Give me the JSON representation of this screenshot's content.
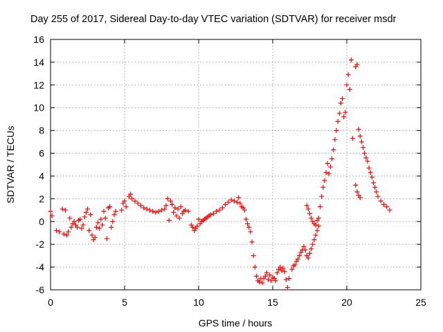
{
  "chart_data": {
    "type": "scatter",
    "title": "Day 255 of 2017, Sidereal Day-to-day VTEC variation (SDTVAR) for receiver msdr",
    "xlabel": "GPS time / hours",
    "ylabel": "SDTVAR / TECUs",
    "xlim": [
      0,
      25
    ],
    "ylim": [
      -6,
      16
    ],
    "xticks": [
      "0",
      "5",
      "10",
      "15",
      "20",
      "25"
    ],
    "yticks": [
      "-6",
      "-4",
      "-2",
      "0",
      "2",
      "4",
      "6",
      "8",
      "10",
      "12",
      "14",
      "16"
    ],
    "grid": true,
    "marker": "+",
    "color": "#ff0000",
    "series": [
      {
        "name": "msdr",
        "points": [
          [
            0.0,
            0.9
          ],
          [
            0.1,
            0.5
          ],
          [
            0.4,
            -0.8
          ],
          [
            0.6,
            -0.9
          ],
          [
            0.8,
            1.1
          ],
          [
            0.9,
            -1.1
          ],
          [
            1.0,
            1.0
          ],
          [
            1.1,
            -1.2
          ],
          [
            1.2,
            -0.9
          ],
          [
            1.3,
            0.3
          ],
          [
            1.4,
            -0.5
          ],
          [
            1.5,
            -0.2
          ],
          [
            1.6,
            0.0
          ],
          [
            1.7,
            -0.3
          ],
          [
            1.8,
            -0.5
          ],
          [
            1.9,
            0.1
          ],
          [
            2.0,
            0.2
          ],
          [
            2.1,
            -0.6
          ],
          [
            2.2,
            -0.3
          ],
          [
            2.3,
            0.4
          ],
          [
            2.4,
            0.8
          ],
          [
            2.5,
            1.1
          ],
          [
            2.6,
            -0.8
          ],
          [
            2.7,
            0.6
          ],
          [
            2.8,
            -1.2
          ],
          [
            2.9,
            -1.6
          ],
          [
            3.0,
            -1.4
          ],
          [
            3.1,
            -0.5
          ],
          [
            3.2,
            -0.1
          ],
          [
            3.3,
            -0.6
          ],
          [
            3.4,
            0.2
          ],
          [
            3.5,
            -0.3
          ],
          [
            3.6,
            0.9
          ],
          [
            3.7,
            0.3
          ],
          [
            3.8,
            -1.5
          ],
          [
            3.9,
            1.2
          ],
          [
            4.0,
            1.3
          ],
          [
            4.1,
            -0.5
          ],
          [
            4.2,
            0.0
          ],
          [
            4.3,
            0.6
          ],
          [
            4.4,
            0.9
          ],
          [
            4.8,
            1.0
          ],
          [
            4.9,
            1.6
          ],
          [
            5.0,
            1.8
          ],
          [
            5.1,
            1.3
          ],
          [
            5.3,
            2.2
          ],
          [
            5.4,
            2.4
          ],
          [
            5.5,
            2.0
          ],
          [
            5.7,
            1.8
          ],
          [
            5.9,
            1.6
          ],
          [
            6.1,
            1.4
          ],
          [
            6.3,
            1.2
          ],
          [
            6.5,
            1.1
          ],
          [
            6.7,
            1.0
          ],
          [
            6.9,
            0.9
          ],
          [
            7.1,
            0.8
          ],
          [
            7.3,
            0.9
          ],
          [
            7.5,
            1.0
          ],
          [
            7.7,
            1.1
          ],
          [
            7.8,
            1.4
          ],
          [
            7.9,
            2.0
          ],
          [
            8.0,
            0.1
          ],
          [
            8.1,
            1.8
          ],
          [
            8.2,
            1.5
          ],
          [
            8.3,
            0.8
          ],
          [
            8.4,
            1.2
          ],
          [
            8.5,
            0.5
          ],
          [
            8.6,
            1.1
          ],
          [
            8.7,
            0.3
          ],
          [
            8.8,
            1.3
          ],
          [
            8.9,
            0.7
          ],
          [
            9.0,
            0.9
          ],
          [
            9.1,
            1.0
          ],
          [
            9.3,
            0.9
          ],
          [
            9.5,
            -0.3
          ],
          [
            9.6,
            -0.5
          ],
          [
            9.7,
            -0.8
          ],
          [
            9.8,
            -0.6
          ],
          [
            9.9,
            -0.4
          ],
          [
            10.0,
            0.2
          ],
          [
            10.1,
            -0.2
          ],
          [
            10.2,
            0.0
          ],
          [
            10.3,
            0.1
          ],
          [
            10.4,
            0.2
          ],
          [
            10.5,
            0.3
          ],
          [
            10.6,
            0.4
          ],
          [
            10.7,
            0.5
          ],
          [
            10.8,
            0.6
          ],
          [
            11.0,
            0.7
          ],
          [
            11.2,
            0.9
          ],
          [
            11.4,
            1.0
          ],
          [
            11.6,
            1.2
          ],
          [
            11.8,
            1.5
          ],
          [
            12.0,
            1.7
          ],
          [
            12.2,
            1.9
          ],
          [
            12.4,
            1.8
          ],
          [
            12.6,
            1.7
          ],
          [
            12.7,
            2.1
          ],
          [
            12.8,
            1.6
          ],
          [
            12.9,
            1.3
          ],
          [
            13.0,
            1.2
          ],
          [
            13.1,
            1.0
          ],
          [
            13.2,
            0.2
          ],
          [
            13.3,
            -0.2
          ],
          [
            13.4,
            -0.5
          ],
          [
            13.5,
            -0.9
          ],
          [
            13.6,
            -1.8
          ],
          [
            13.7,
            -3.0
          ],
          [
            13.8,
            -4.0
          ],
          [
            13.9,
            -4.8
          ],
          [
            14.0,
            -5.2
          ],
          [
            14.1,
            -5.3
          ],
          [
            14.2,
            -5.0
          ],
          [
            14.3,
            -5.4
          ],
          [
            14.4,
            -5.0
          ],
          [
            14.5,
            -4.8
          ],
          [
            14.6,
            -4.5
          ],
          [
            14.7,
            -5.1
          ],
          [
            14.8,
            -4.7
          ],
          [
            14.9,
            -5.2
          ],
          [
            15.0,
            -4.9
          ],
          [
            15.1,
            -5.0
          ],
          [
            15.2,
            -5.2
          ],
          [
            15.3,
            -4.5
          ],
          [
            15.4,
            -4.2
          ],
          [
            15.5,
            -4.0
          ],
          [
            15.6,
            -4.3
          ],
          [
            15.7,
            -4.1
          ],
          [
            15.8,
            -4.4
          ],
          [
            15.9,
            -5.1
          ],
          [
            16.0,
            -5.8
          ],
          [
            16.1,
            -5.0
          ],
          [
            16.3,
            -4.2
          ],
          [
            16.4,
            -3.9
          ],
          [
            16.5,
            -3.8
          ],
          [
            16.6,
            -3.5
          ],
          [
            16.7,
            -3.3
          ],
          [
            16.8,
            -3.0
          ],
          [
            16.9,
            -2.7
          ],
          [
            17.0,
            -2.5
          ],
          [
            17.1,
            -2.2
          ],
          [
            17.2,
            -2.5
          ],
          [
            17.3,
            -3.0
          ],
          [
            17.4,
            -3.2
          ],
          [
            17.5,
            -2.8
          ],
          [
            17.6,
            -2.4
          ],
          [
            17.7,
            -2.0
          ],
          [
            17.8,
            -1.6
          ],
          [
            17.9,
            -1.2
          ],
          [
            18.0,
            -0.8
          ],
          [
            18.1,
            -0.4
          ],
          [
            17.3,
            1.4
          ],
          [
            17.4,
            1.1
          ],
          [
            17.5,
            0.7
          ],
          [
            17.6,
            0.3
          ],
          [
            17.7,
            0.0
          ],
          [
            17.8,
            -0.2
          ],
          [
            17.9,
            -0.3
          ],
          [
            18.0,
            0.1
          ],
          [
            18.1,
            0.3
          ],
          [
            18.2,
            1.3
          ],
          [
            18.3,
            2.2
          ],
          [
            18.4,
            3.0
          ],
          [
            18.5,
            3.6
          ],
          [
            18.6,
            4.3
          ],
          [
            18.7,
            5.1
          ],
          [
            18.8,
            4.2
          ],
          [
            18.9,
            4.8
          ],
          [
            19.0,
            5.5
          ],
          [
            19.1,
            6.3
          ],
          [
            19.2,
            7.2
          ],
          [
            19.3,
            8.0
          ],
          [
            19.4,
            8.8
          ],
          [
            19.5,
            9.5
          ],
          [
            19.6,
            10.4
          ],
          [
            19.7,
            10.8
          ],
          [
            19.8,
            9.2
          ],
          [
            19.9,
            9.6
          ],
          [
            20.0,
            12.0
          ],
          [
            20.1,
            12.9
          ],
          [
            20.2,
            11.6
          ],
          [
            20.3,
            14.2
          ],
          [
            20.4,
            7.3
          ],
          [
            20.6,
            13.6
          ],
          [
            20.7,
            13.8
          ],
          [
            20.8,
            8.1
          ],
          [
            20.9,
            7.5
          ],
          [
            21.0,
            7.0
          ],
          [
            21.1,
            6.5
          ],
          [
            21.2,
            6.0
          ],
          [
            21.3,
            5.6
          ],
          [
            21.4,
            5.3
          ],
          [
            20.6,
            3.2
          ],
          [
            20.7,
            2.6
          ],
          [
            20.8,
            2.3
          ],
          [
            20.9,
            2.1
          ],
          [
            21.5,
            4.7
          ],
          [
            21.6,
            4.3
          ],
          [
            21.7,
            3.9
          ],
          [
            21.8,
            3.4
          ],
          [
            21.9,
            3.0
          ],
          [
            22.0,
            2.6
          ],
          [
            22.1,
            2.2
          ],
          [
            22.3,
            1.8
          ],
          [
            22.5,
            1.5
          ],
          [
            22.7,
            1.3
          ],
          [
            22.9,
            1.0
          ]
        ]
      }
    ]
  }
}
